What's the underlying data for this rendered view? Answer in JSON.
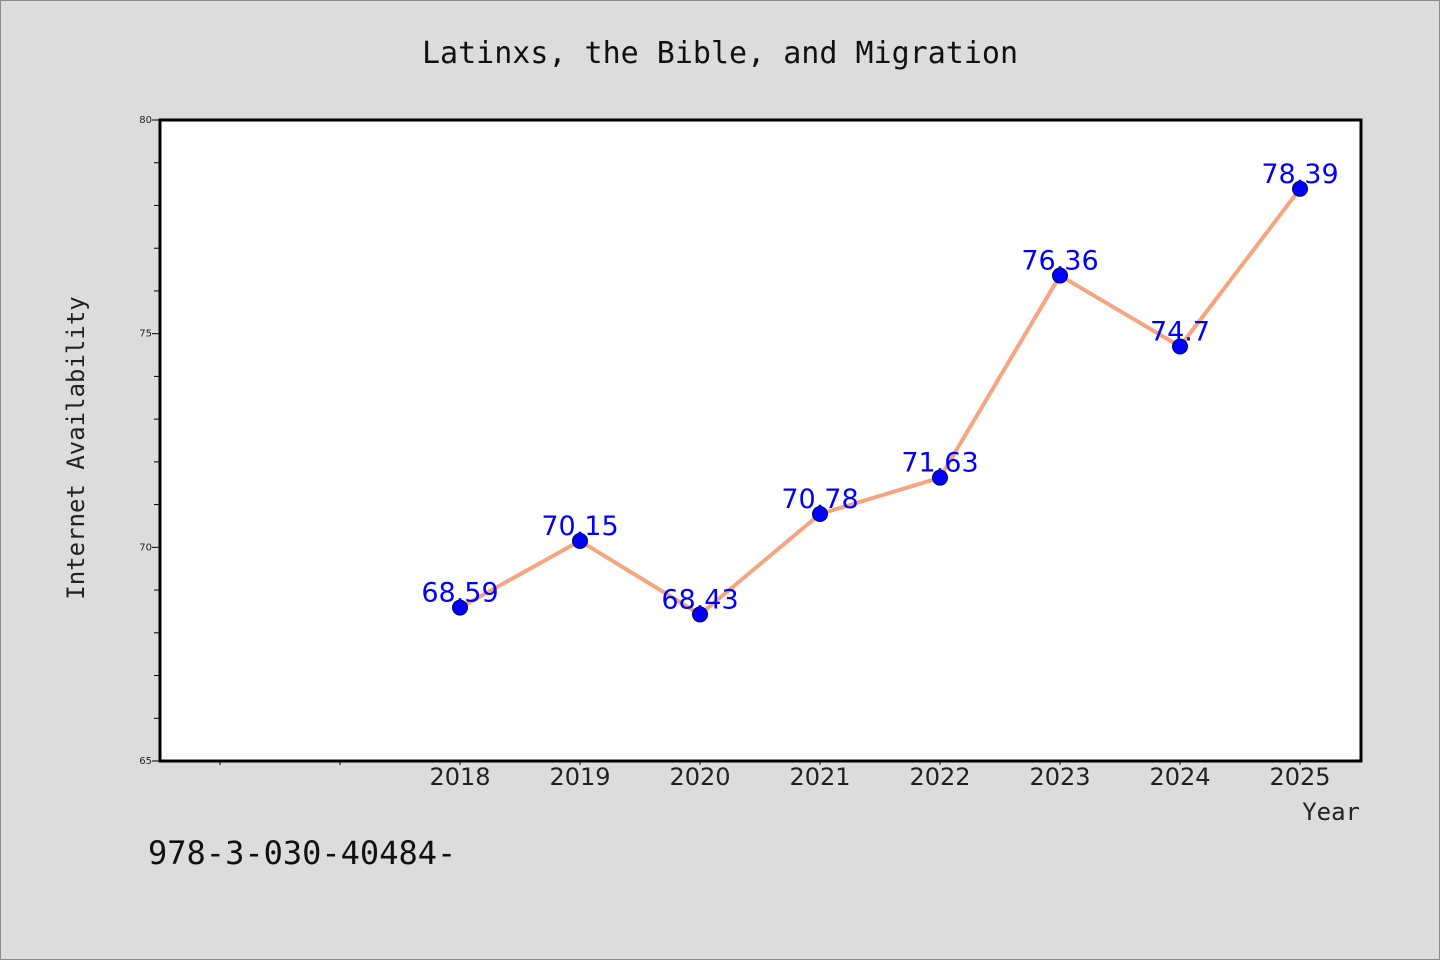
{
  "footnote": "978-3-030-40484-",
  "chart_data": {
    "type": "line",
    "title": "Latinxs, the Bible, and Migration",
    "xlabel": "Year",
    "ylabel": "Internet Availability",
    "categories": [
      "2018",
      "2019",
      "2020",
      "2021",
      "2022",
      "2023",
      "2024",
      "2025"
    ],
    "series": [
      {
        "values": [
          68.59,
          70.15,
          68.43,
          70.78,
          71.63,
          76.36,
          74.7,
          78.39
        ],
        "data_labels": [
          "68.59",
          "70.15",
          "68.43",
          "70.78",
          "71.63",
          "76.36",
          "74.7",
          "78.39"
        ],
        "line_color": "#f4a582",
        "marker_color": "#0000ff"
      }
    ],
    "ylim": [
      65,
      80
    ],
    "yticks": [
      "65",
      "70",
      "75",
      "80"
    ],
    "grid": false,
    "legend": "none"
  }
}
